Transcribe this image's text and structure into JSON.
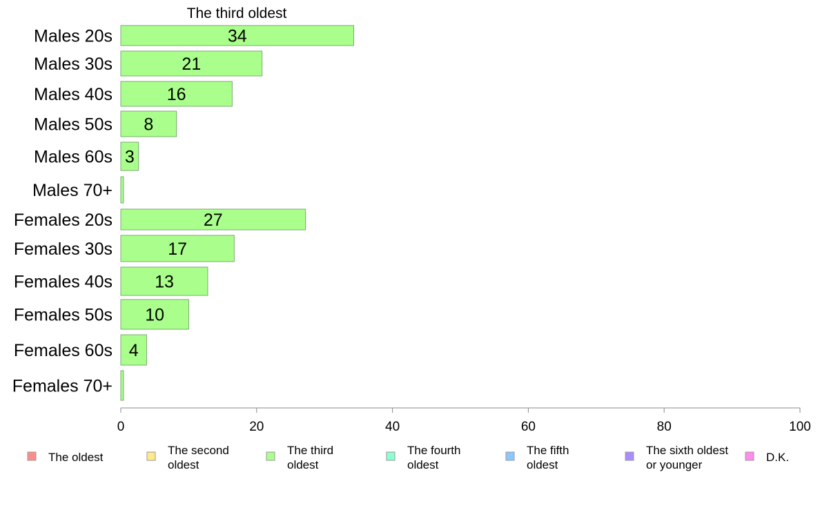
{
  "chart_data": {
    "type": "bar",
    "orientation": "horizontal",
    "title": "The third oldest",
    "categories": [
      "Males 20s",
      "Males 30s",
      "Males 40s",
      "Males 50s",
      "Males 60s",
      "Males 70+",
      "Females 20s",
      "Females 30s",
      "Females 40s",
      "Females 50s",
      "Females 60s",
      "Females 70+"
    ],
    "values": [
      34.3,
      20.8,
      16.4,
      8.2,
      2.6,
      0.4,
      27.2,
      16.7,
      12.8,
      10.0,
      3.8,
      0.4
    ],
    "data_labels": [
      "34",
      "21",
      "16",
      "8",
      "3",
      "",
      "27",
      "17",
      "13",
      "10",
      "4",
      ""
    ],
    "xlim": [
      0,
      100
    ],
    "xticks": [
      "0",
      "20",
      "40",
      "60",
      "80",
      "100"
    ],
    "grid": false,
    "bar_color": "#aaff8c",
    "bar_stroke": "#7aa870",
    "legend": {
      "placement": "bottom",
      "items": [
        {
          "label_lines": [
            "The oldest"
          ],
          "color": "#ff8c8c"
        },
        {
          "label_lines": [
            "The second",
            "oldest"
          ],
          "color": "#ffe98c"
        },
        {
          "label_lines": [
            "The third",
            "oldest"
          ],
          "color": "#aaff8c"
        },
        {
          "label_lines": [
            "The fourth",
            "oldest"
          ],
          "color": "#8cffd4"
        },
        {
          "label_lines": [
            "The fifth",
            "oldest"
          ],
          "color": "#8cc8ff"
        },
        {
          "label_lines": [
            "The sixth oldest",
            "or younger"
          ],
          "color": "#aa8cff"
        },
        {
          "label_lines": [
            "D.K."
          ],
          "color": "#ff8cec"
        }
      ]
    }
  }
}
